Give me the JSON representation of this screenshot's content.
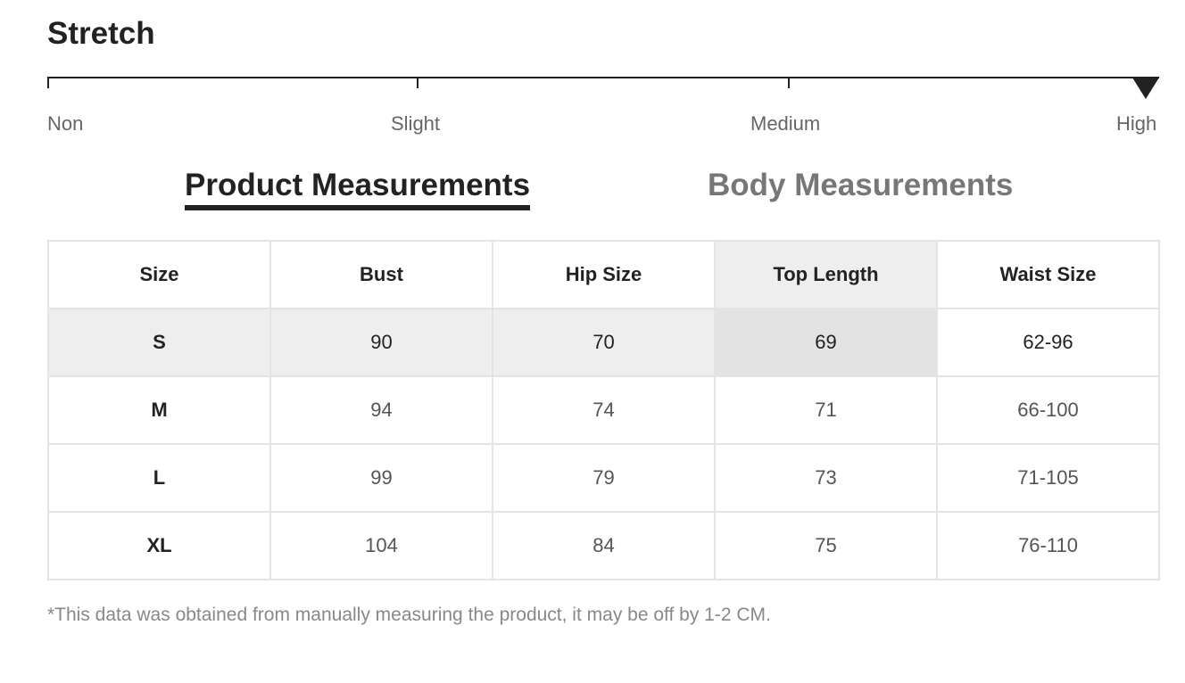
{
  "stretch": {
    "title": "Stretch",
    "levels": [
      "Non",
      "Slight",
      "Medium",
      "High"
    ],
    "selected": "High"
  },
  "tabs": {
    "product": "Product Measurements",
    "body": "Body Measurements",
    "active": "product"
  },
  "table": {
    "headers": [
      "Size",
      "Bust",
      "Hip Size",
      "Top Length",
      "Waist Size"
    ],
    "rows": [
      [
        "S",
        "90",
        "70",
        "69",
        "62-96"
      ],
      [
        "M",
        "94",
        "74",
        "71",
        "66-100"
      ],
      [
        "L",
        "99",
        "79",
        "73",
        "71-105"
      ],
      [
        "XL",
        "104",
        "84",
        "75",
        "76-110"
      ]
    ]
  },
  "note": "*This data was obtained from manually measuring the product, it may be off by 1-2 CM.",
  "colors": {
    "text": "#222222",
    "inactive_tab": "#777777",
    "highlight": "#eeeeee"
  }
}
